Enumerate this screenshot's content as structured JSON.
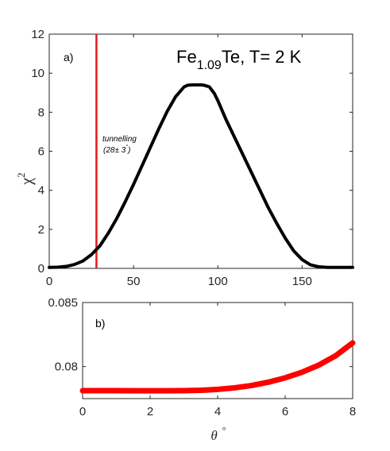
{
  "chart_data": [
    {
      "type": "line",
      "panel_label": "a)",
      "title_main": "Fe",
      "title_sub": "1.09",
      "title_rest": "Te, T= 2 K",
      "ylabel_base": "χ",
      "ylabel_sup": "2",
      "xlim": [
        0,
        180
      ],
      "ylim": [
        0,
        12
      ],
      "xticks": [
        "0",
        "50",
        "100",
        "150"
      ],
      "xtick_values": [
        0,
        50,
        100,
        150
      ],
      "yticks": [
        "0",
        "2",
        "4",
        "6",
        "8",
        "10",
        "12"
      ],
      "ytick_values": [
        0,
        2,
        4,
        6,
        8,
        10,
        12
      ],
      "series": [
        {
          "color": "#000000",
          "x": [
            0,
            5,
            10,
            15,
            20,
            25,
            30,
            35,
            40,
            45,
            50,
            55,
            60,
            65,
            70,
            75,
            80,
            82,
            85,
            88,
            90,
            92,
            95,
            98,
            100,
            105,
            110,
            115,
            120,
            125,
            130,
            135,
            140,
            145,
            150,
            155,
            160,
            165,
            170,
            175,
            180
          ],
          "y": [
            0.05,
            0.06,
            0.1,
            0.2,
            0.38,
            0.7,
            1.15,
            1.8,
            2.55,
            3.4,
            4.3,
            5.25,
            6.2,
            7.15,
            8.05,
            8.8,
            9.3,
            9.38,
            9.4,
            9.4,
            9.4,
            9.38,
            9.3,
            8.95,
            8.6,
            7.6,
            6.7,
            5.8,
            4.9,
            4.0,
            3.1,
            2.3,
            1.55,
            0.9,
            0.45,
            0.18,
            0.08,
            0.05,
            0.05,
            0.05,
            0.05
          ]
        }
      ],
      "vline": {
        "x": 28,
        "color": "#e41a1c"
      },
      "annotation_line1": "tunnelling",
      "annotation_line2": "(28± 3",
      "annotation_deg": "°",
      "annotation_close": ")"
    },
    {
      "type": "line",
      "panel_label": "b)",
      "xlabel": "θ",
      "xlabel_unit": "°",
      "xlim": [
        0,
        8
      ],
      "ylim": [
        0.0775,
        0.085
      ],
      "xticks": [
        "0",
        "2",
        "4",
        "6",
        "8"
      ],
      "xtick_values": [
        0,
        2,
        4,
        6,
        8
      ],
      "yticks": [
        "0.08",
        "0.085"
      ],
      "ytick_values": [
        0.08,
        0.085
      ],
      "series": [
        {
          "color": "#ff0000",
          "x": [
            0,
            0.5,
            1,
            1.5,
            2,
            2.5,
            3,
            3.5,
            4,
            4.5,
            5,
            5.5,
            6,
            6.5,
            7,
            7.5,
            8
          ],
          "y": [
            0.07812,
            0.07812,
            0.07812,
            0.07811,
            0.07811,
            0.07811,
            0.07812,
            0.07815,
            0.07822,
            0.07834,
            0.07852,
            0.07878,
            0.07912,
            0.07956,
            0.08012,
            0.08085,
            0.08185
          ]
        }
      ]
    }
  ]
}
